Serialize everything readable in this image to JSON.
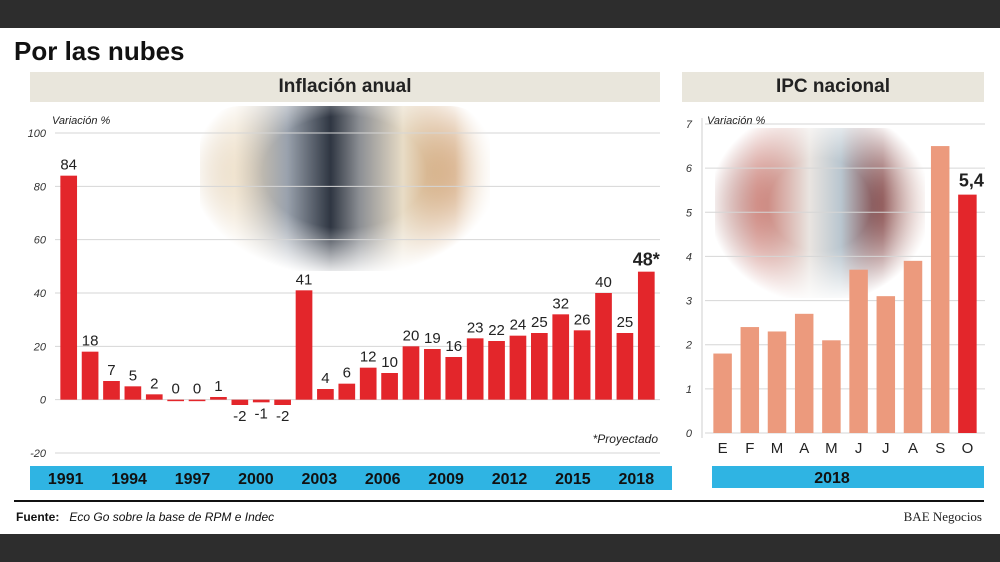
{
  "title": "Por las nubes",
  "source_label": "Fuente:",
  "source_text": "Eco Go sobre la base de RPM e Indec",
  "brand": "BAE Negocios",
  "colors": {
    "bar_left": "#e3262b",
    "bar_right_light": "#ec9a7d",
    "bar_right_highlight": "#e3262b",
    "axis_band": "#2fb4e3",
    "panel_head": "#e9e6dc"
  },
  "chart_data": [
    {
      "type": "bar",
      "title": "Inflación anual",
      "ylabel": "Variación %",
      "ylim": [
        -20,
        100
      ],
      "yticks": [
        -20,
        0,
        20,
        40,
        60,
        80,
        100
      ],
      "x": [
        1991,
        1992,
        1993,
        1994,
        1995,
        1996,
        1997,
        1998,
        1999,
        2000,
        2001,
        2002,
        2003,
        2004,
        2005,
        2006,
        2007,
        2008,
        2009,
        2010,
        2011,
        2012,
        2013,
        2014,
        2015,
        2016,
        2017,
        2018
      ],
      "values": [
        84,
        18,
        7,
        5,
        2,
        0,
        0,
        1,
        -2,
        -1,
        -2,
        41,
        4,
        6,
        12,
        10,
        20,
        19,
        16,
        23,
        22,
        24,
        25,
        32,
        26,
        40,
        25,
        48
      ],
      "data_labels": [
        "84",
        "18",
        "7",
        "5",
        "2",
        "0",
        "0",
        "1",
        "-2",
        "-1",
        "-2",
        "41",
        "4",
        "6",
        "12",
        "10",
        "20",
        "19",
        "16",
        "23",
        "22",
        "24",
        "25",
        "32",
        "26",
        "40",
        "25",
        "48*"
      ],
      "xtick_labels": [
        "1991",
        "1994",
        "1997",
        "2000",
        "2003",
        "2006",
        "2009",
        "2012",
        "2015",
        "2018"
      ],
      "note": "*Proyectado",
      "grid": true
    },
    {
      "type": "bar",
      "title": "IPC nacional",
      "ylabel": "Variación %",
      "ylim": [
        0,
        7
      ],
      "yticks": [
        0,
        1,
        2,
        3,
        4,
        5,
        6,
        7
      ],
      "categories": [
        "E",
        "F",
        "M",
        "A",
        "M",
        "J",
        "J",
        "A",
        "S",
        "O"
      ],
      "values": [
        1.8,
        2.4,
        2.3,
        2.7,
        2.1,
        3.7,
        3.1,
        3.9,
        6.5,
        5.4
      ],
      "highlight_label": "5,4",
      "xband_label": "2018",
      "grid": true
    }
  ]
}
